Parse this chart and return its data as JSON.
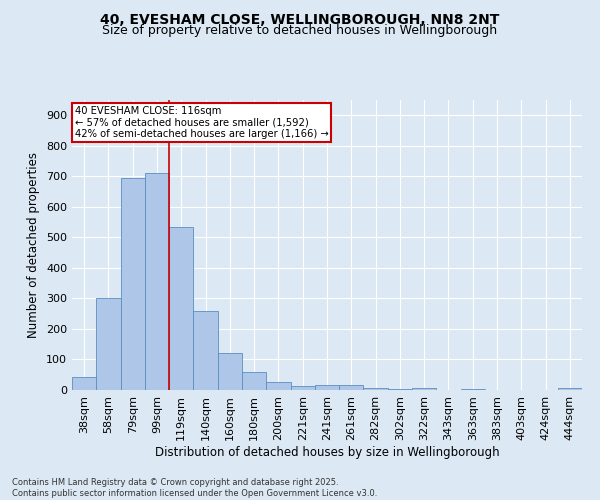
{
  "title_line1": "40, EVESHAM CLOSE, WELLINGBOROUGH, NN8 2NT",
  "title_line2": "Size of property relative to detached houses in Wellingborough",
  "xlabel": "Distribution of detached houses by size in Wellingborough",
  "ylabel": "Number of detached properties",
  "categories": [
    "38sqm",
    "58sqm",
    "79sqm",
    "99sqm",
    "119sqm",
    "140sqm",
    "160sqm",
    "180sqm",
    "200sqm",
    "221sqm",
    "241sqm",
    "261sqm",
    "282sqm",
    "302sqm",
    "322sqm",
    "343sqm",
    "363sqm",
    "383sqm",
    "403sqm",
    "424sqm",
    "444sqm"
  ],
  "values": [
    43,
    300,
    693,
    710,
    535,
    260,
    120,
    60,
    25,
    12,
    15,
    15,
    5,
    2,
    8,
    0,
    2,
    0,
    0,
    0,
    5
  ],
  "bar_color": "#aec6e8",
  "bar_edge_color": "#5a8fc0",
  "vline_color": "#cc0000",
  "annotation_text": "40 EVESHAM CLOSE: 116sqm\n← 57% of detached houses are smaller (1,592)\n42% of semi-detached houses are larger (1,166) →",
  "annotation_box_color": "#ffffff",
  "annotation_box_edge": "#cc0000",
  "ylim": [
    0,
    950
  ],
  "yticks": [
    0,
    100,
    200,
    300,
    400,
    500,
    600,
    700,
    800,
    900
  ],
  "footnote": "Contains HM Land Registry data © Crown copyright and database right 2025.\nContains public sector information licensed under the Open Government Licence v3.0.",
  "bg_color": "#dce9f5",
  "plot_bg_color": "#dce9f5",
  "title_fontsize": 10,
  "subtitle_fontsize": 9
}
